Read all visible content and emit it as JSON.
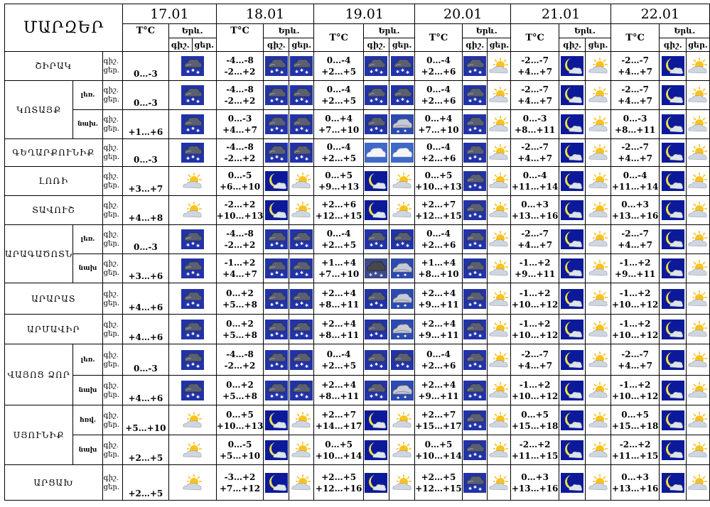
{
  "header": {
    "title": "ՄԱՐԶԵՐ",
    "temp_label": "T°C",
    "weather_label": "Երև.",
    "night": "գիշ.",
    "day": "ցեր.",
    "dates": [
      "17.01",
      "18.01",
      "19.01",
      "20.01",
      "21.01",
      "22.01"
    ]
  },
  "icon_legend": {
    "sn": "snow-cloud-icon",
    "sg": "snow-cloud-gray-icon",
    "mn": "moon-cloud-icon",
    "su": "sun-cloud-icon",
    "wc": "white-clouds-icon",
    "cc": "cloudy-icon"
  },
  "rows": [
    {
      "region": "ՇԻՐԱԿ",
      "sub": "",
      "rowspan": 1,
      "d": [
        {
          "n": "",
          "dy": "0…-3",
          "i": [
            "sn"
          ]
        },
        {
          "n": "-4…-8",
          "dy": "-2…+2",
          "i": [
            "sn",
            "sn"
          ]
        },
        {
          "n": "0…-4",
          "dy": "+2…+5",
          "i": [
            "sn",
            "sn"
          ]
        },
        {
          "n": "0…-4",
          "dy": "+2…+6",
          "i": [
            "sn",
            "su"
          ]
        },
        {
          "n": "-2…-7",
          "dy": "+4…+7",
          "i": [
            "mn",
            "su"
          ]
        },
        {
          "n": "-2…-7",
          "dy": "+4…+7",
          "i": [
            "mn",
            "su"
          ]
        }
      ]
    },
    {
      "region": "ԿՈՏԱՅՔ",
      "sub": "լեռ.",
      "rowspan": 2,
      "d": [
        {
          "n": "",
          "dy": "0…-3",
          "i": [
            "sn"
          ]
        },
        {
          "n": "-4…-8",
          "dy": "-2…+2",
          "i": [
            "sn",
            "sn"
          ]
        },
        {
          "n": "0…-4",
          "dy": "+2…+5",
          "i": [
            "sn",
            "sn"
          ]
        },
        {
          "n": "0…-4",
          "dy": "+2…+6",
          "i": [
            "sn",
            "su"
          ]
        },
        {
          "n": "-2…-7",
          "dy": "+4…+7",
          "i": [
            "mn",
            "su"
          ]
        },
        {
          "n": "-2…-7",
          "dy": "+4…+7",
          "i": [
            "mn",
            "su"
          ]
        }
      ]
    },
    {
      "region": "",
      "sub": "նախ.",
      "rowspan": 0,
      "d": [
        {
          "n": "",
          "dy": "+1…+6",
          "i": [
            "sn"
          ]
        },
        {
          "n": "0…-3",
          "dy": "+4…+7",
          "i": [
            "sn",
            "sn"
          ]
        },
        {
          "n": "0…+4",
          "dy": "+7…+10",
          "i": [
            "sn",
            "cc"
          ]
        },
        {
          "n": "0…+4",
          "dy": "+7…+10",
          "i": [
            "sn",
            "su"
          ]
        },
        {
          "n": "0…-3",
          "dy": "+8…+11",
          "i": [
            "mn",
            "su"
          ]
        },
        {
          "n": "0…-3",
          "dy": "+8…+11",
          "i": [
            "mn",
            "su"
          ]
        }
      ]
    },
    {
      "region": "ԳԵՂԱՐՔՈՒՆԻՔ",
      "sub": "",
      "rowspan": 1,
      "d": [
        {
          "n": "",
          "dy": "0…-3",
          "i": [
            "sn"
          ]
        },
        {
          "n": "-4…-8",
          "dy": "-2…+2",
          "i": [
            "sn",
            "sn"
          ]
        },
        {
          "n": "0…-4",
          "dy": "+2…+5",
          "i": [
            "wc",
            "wc"
          ]
        },
        {
          "n": "0…-4",
          "dy": "+2…+6",
          "i": [
            "sn",
            "su"
          ]
        },
        {
          "n": "-2…-7",
          "dy": "+4…+7",
          "i": [
            "mn",
            "su"
          ]
        },
        {
          "n": "-2…-7",
          "dy": "+4…+7",
          "i": [
            "mn",
            "su"
          ]
        }
      ]
    },
    {
      "region": "ԼՈՌԻ",
      "sub": "",
      "rowspan": 1,
      "d": [
        {
          "n": "",
          "dy": "+3…+7",
          "i": [
            "su"
          ]
        },
        {
          "n": "0…-5",
          "dy": "+6…+10",
          "i": [
            "mn",
            "su"
          ]
        },
        {
          "n": "0…+5",
          "dy": "+9…+13",
          "i": [
            "mn",
            "su"
          ]
        },
        {
          "n": "0…+5",
          "dy": "+10…+13",
          "i": [
            "sn",
            "su"
          ]
        },
        {
          "n": "0…-4",
          "dy": "+11…+14",
          "i": [
            "mn",
            "su"
          ]
        },
        {
          "n": "0…-4",
          "dy": "+11…+14",
          "i": [
            "mn",
            "su"
          ]
        }
      ]
    },
    {
      "region": "ՏԱՎՈՒՇ",
      "sub": "",
      "rowspan": 1,
      "d": [
        {
          "n": "",
          "dy": "+4…+8",
          "i": [
            "su"
          ]
        },
        {
          "n": "-2…+2",
          "dy": "+10…+13",
          "i": [
            "mn",
            "su"
          ]
        },
        {
          "n": "+2…+6",
          "dy": "+12…+15",
          "i": [
            "mn",
            "su"
          ]
        },
        {
          "n": "+2…+7",
          "dy": "+12…+15",
          "i": [
            "sn",
            "su"
          ]
        },
        {
          "n": "0…+3",
          "dy": "+13…+16",
          "i": [
            "mn",
            "su"
          ]
        },
        {
          "n": "0…+3",
          "dy": "+13…+16",
          "i": [
            "mn",
            "su"
          ]
        }
      ]
    },
    {
      "region": "ԱՐԱԳԱԾՈՏՆ",
      "sub": "լեռ.",
      "rowspan": 2,
      "d": [
        {
          "n": "",
          "dy": "0…-3",
          "i": [
            "sn"
          ]
        },
        {
          "n": "-4…-8",
          "dy": "-2…+2",
          "i": [
            "sn",
            "sn"
          ]
        },
        {
          "n": "0…-4",
          "dy": "+2…+5",
          "i": [
            "sn",
            "sn"
          ]
        },
        {
          "n": "0…-4",
          "dy": "+2…+6",
          "i": [
            "sn",
            "su"
          ]
        },
        {
          "n": "-2…-7",
          "dy": "+4…+7",
          "i": [
            "mn",
            "su"
          ]
        },
        {
          "n": "-2…-7",
          "dy": "+4…+7",
          "i": [
            "mn",
            "su"
          ]
        }
      ]
    },
    {
      "region": "",
      "sub": "նախ",
      "rowspan": 0,
      "d": [
        {
          "n": "",
          "dy": "+3…+6",
          "i": [
            "sn"
          ]
        },
        {
          "n": "-1…+2",
          "dy": "+4…+7",
          "i": [
            "sn",
            "sn"
          ]
        },
        {
          "n": "+1…+4",
          "dy": "+7…+10",
          "i": [
            "sg",
            "cc"
          ]
        },
        {
          "n": "+1…+4",
          "dy": "+8…+10",
          "i": [
            "sn",
            "su"
          ]
        },
        {
          "n": "-1…+2",
          "dy": "+9…+11",
          "i": [
            "mn",
            "su"
          ]
        },
        {
          "n": "-1…+2",
          "dy": "+9…+11",
          "i": [
            "mn",
            "su"
          ]
        }
      ]
    },
    {
      "region": "ԱՐԱՐԱՏ",
      "sub": "",
      "rowspan": 1,
      "d": [
        {
          "n": "",
          "dy": "+4…+6",
          "i": [
            "sn"
          ]
        },
        {
          "n": "0…+2",
          "dy": "+5…+8",
          "i": [
            "sn",
            "sn"
          ]
        },
        {
          "n": "+2…+4",
          "dy": "+8…+11",
          "i": [
            "sn",
            "cc"
          ]
        },
        {
          "n": "+2…+4",
          "dy": "+9…+11",
          "i": [
            "sn",
            "su"
          ]
        },
        {
          "n": "-1…+2",
          "dy": "+10…+12",
          "i": [
            "mn",
            "su"
          ]
        },
        {
          "n": "-1…+2",
          "dy": "+10…+12",
          "i": [
            "mn",
            "su"
          ]
        }
      ]
    },
    {
      "region": "ԱՐՄԱՎԻՐ",
      "sub": "",
      "rowspan": 1,
      "d": [
        {
          "n": "",
          "dy": "+4…+6",
          "i": [
            "sn"
          ]
        },
        {
          "n": "0…+2",
          "dy": "+5…+8",
          "i": [
            "sn",
            "sn"
          ]
        },
        {
          "n": "+2…+4",
          "dy": "+8…+11",
          "i": [
            "sn",
            "cc"
          ]
        },
        {
          "n": "+2…+4",
          "dy": "+9…+11",
          "i": [
            "sn",
            "su"
          ]
        },
        {
          "n": "-1…+2",
          "dy": "+10…+12",
          "i": [
            "mn",
            "su"
          ]
        },
        {
          "n": "-1…+2",
          "dy": "+10…+12",
          "i": [
            "mn",
            "su"
          ]
        }
      ]
    },
    {
      "region": "ՎԱՅՈՑ ՁՈՐ",
      "sub": "լեռ.",
      "rowspan": 2,
      "d": [
        {
          "n": "",
          "dy": "0…-3",
          "i": [
            "sn"
          ]
        },
        {
          "n": "-4…-8",
          "dy": "-2…+2",
          "i": [
            "sn",
            "sn"
          ]
        },
        {
          "n": "0…-4",
          "dy": "+2…+5",
          "i": [
            "sn",
            "sn"
          ]
        },
        {
          "n": "0…-4",
          "dy": "+2…+6",
          "i": [
            "sn",
            "su"
          ]
        },
        {
          "n": "-2…-7",
          "dy": "+4…+7",
          "i": [
            "mn",
            "su"
          ]
        },
        {
          "n": "-2…-7",
          "dy": "+4…+7",
          "i": [
            "mn",
            "su"
          ]
        }
      ]
    },
    {
      "region": "",
      "sub": "նախ",
      "rowspan": 0,
      "d": [
        {
          "n": "",
          "dy": "+4…+6",
          "i": [
            "sn"
          ]
        },
        {
          "n": "0…+2",
          "dy": "+5…+8",
          "i": [
            "sn",
            "sn"
          ]
        },
        {
          "n": "+2…+4",
          "dy": "+8…+11",
          "i": [
            "sn",
            "cc"
          ]
        },
        {
          "n": "+2…+4",
          "dy": "+9…+11",
          "i": [
            "sn",
            "su"
          ]
        },
        {
          "n": "-1…+2",
          "dy": "+10…+12",
          "i": [
            "mn",
            "su"
          ]
        },
        {
          "n": "-1…+2",
          "dy": "+10…+12",
          "i": [
            "mn",
            "su"
          ]
        }
      ]
    },
    {
      "region": "ՍՅՈՒՆԻՔ",
      "sub": "հռվ.",
      "rowspan": 2,
      "d": [
        {
          "n": "",
          "dy": "+5…+10",
          "i": [
            "su"
          ]
        },
        {
          "n": "0…+5",
          "dy": "+10…+13",
          "i": [
            "mn",
            "su"
          ]
        },
        {
          "n": "+2…+7",
          "dy": "+14…+17",
          "i": [
            "mn",
            "su"
          ]
        },
        {
          "n": "+2…+7",
          "dy": "+15…+17",
          "i": [
            "sn",
            "su"
          ]
        },
        {
          "n": "0…+5",
          "dy": "+15…+18",
          "i": [
            "mn",
            "su"
          ]
        },
        {
          "n": "0…+5",
          "dy": "+15…+18",
          "i": [
            "mn",
            "su"
          ]
        }
      ]
    },
    {
      "region": "",
      "sub": "նախ",
      "rowspan": 0,
      "d": [
        {
          "n": "",
          "dy": "+2…+5",
          "i": [
            "su"
          ]
        },
        {
          "n": "0…-5",
          "dy": "+5…+10",
          "i": [
            "mn",
            "su"
          ]
        },
        {
          "n": "0…+5",
          "dy": "+10…+14",
          "i": [
            "mn",
            "su"
          ]
        },
        {
          "n": "0…+5",
          "dy": "+10…+14",
          "i": [
            "sn",
            "su"
          ]
        },
        {
          "n": "-2…+2",
          "dy": "+11…+15",
          "i": [
            "mn",
            "su"
          ]
        },
        {
          "n": "-2…+2",
          "dy": "+11…+15",
          "i": [
            "mn",
            "su"
          ]
        }
      ]
    },
    {
      "region": "ԱՐՑԱԽ",
      "sub": "",
      "rowspan": 1,
      "d": [
        {
          "n": "",
          "dy": "+2…+5",
          "i": [
            "su"
          ]
        },
        {
          "n": "-3…+2",
          "dy": "+7…+12",
          "i": [
            "mn",
            "su"
          ]
        },
        {
          "n": "+2…+5",
          "dy": "+12…+16",
          "i": [
            "mn",
            "su"
          ]
        },
        {
          "n": "+2…+5",
          "dy": "+12…+15",
          "i": [
            "sn",
            "su"
          ]
        },
        {
          "n": "0…+3",
          "dy": "+13…+16",
          "i": [
            "mn",
            "su"
          ]
        },
        {
          "n": "0…+3",
          "dy": "+13…+16",
          "i": [
            "mn",
            "su"
          ]
        }
      ]
    }
  ]
}
